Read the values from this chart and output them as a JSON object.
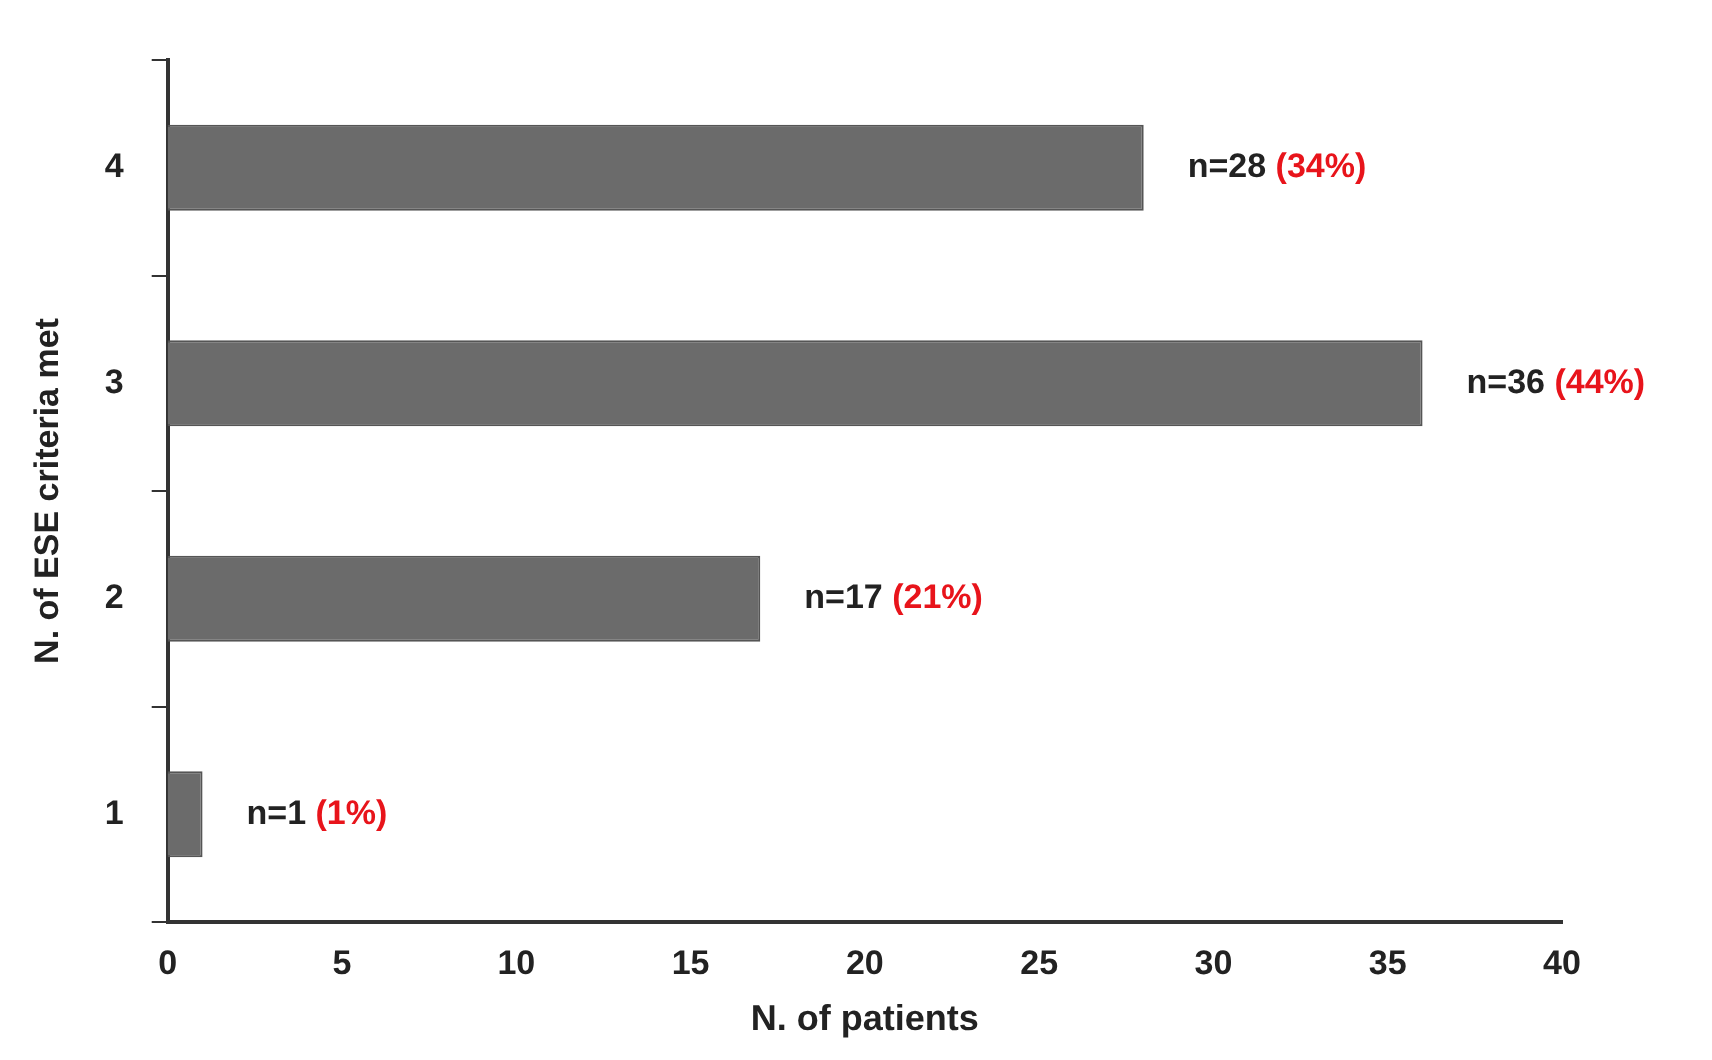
{
  "chart_data": {
    "type": "bar",
    "orientation": "horizontal",
    "xlabel": "N. of patients",
    "ylabel": "N. of ESE criteria met",
    "categories": [
      "4",
      "3",
      "2",
      "1"
    ],
    "values": [
      28,
      36,
      17,
      1
    ],
    "color": "#6b6b6b",
    "value_labels": [
      "n=28 (34%)",
      "n=36 (44%)",
      "n=17 (21%)",
      "n=1 (1%)"
    ],
    "xlim": [
      0,
      40
    ],
    "xticks": [
      0,
      5,
      10,
      15,
      20,
      25,
      30,
      35,
      40
    ],
    "grid": false,
    "legend": false
  }
}
